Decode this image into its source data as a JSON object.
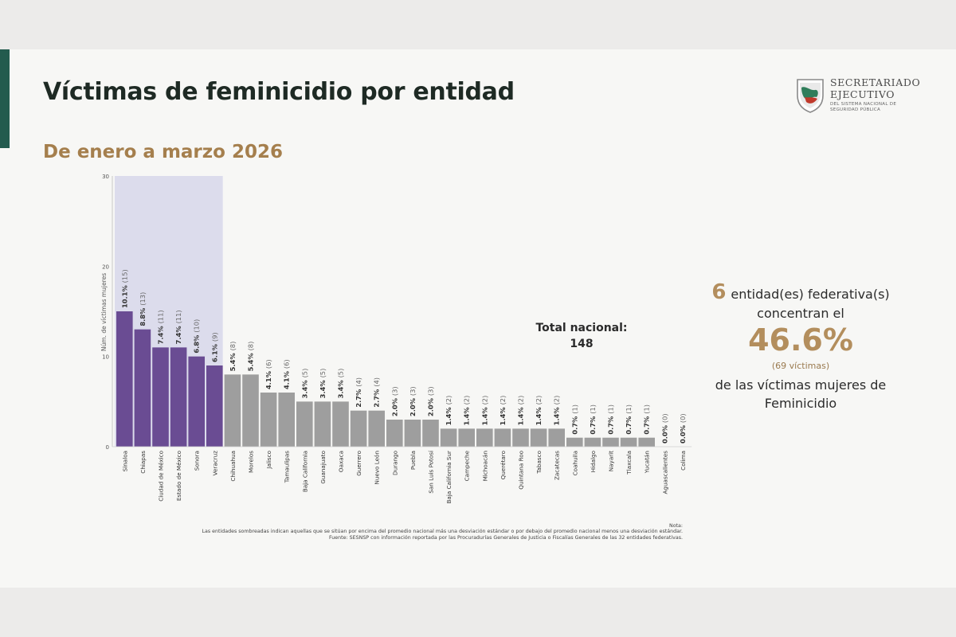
{
  "title": "Víctimas de feminicidio por entidad",
  "subtitle": "De enero a marzo 2026",
  "logo": {
    "line1": "SECRETARIADO",
    "line2": "EJECUTIVO",
    "line3": "DEL SISTEMA NACIONAL DE SEGURIDAD PÚBLICA"
  },
  "total": {
    "label": "Total nacional:",
    "value": "148"
  },
  "summary": {
    "count": "6",
    "line1": "entidad(es)  federativa(s)",
    "line2": "concentran el",
    "percent": "46.6%",
    "victims": "(69  víctimas)",
    "line3": "de las  víctimas  mujeres de",
    "line4": "Feminicidio"
  },
  "notes": {
    "label": "Nota:",
    "line1": "Las entidades sombreadas indican aquellas que se sitúan por encima del promedio nacional más una desviación estándar o por debajo del promedio nacional menos una desviación estándar.",
    "line2": "Fuente: SESNSP con información reportada por las Procuradurías Generales de Justicia o Fiscalías Generales de las 32 entidades federativas."
  },
  "colors": {
    "highlight_bar": "#6a4c93",
    "regular_bar": "#9e9e9e",
    "highlight_band": "#dcdcec",
    "accent": "#235b4e",
    "gold": "#b38e5d"
  },
  "chart_data": {
    "type": "bar",
    "ylabel": "Núm. de víctimas mujeres",
    "ylim": [
      0,
      30
    ],
    "yticks": [
      "0",
      "10",
      "20",
      "30"
    ],
    "categories": [
      "Sinaloa",
      "Chiapas",
      "Ciudad de México",
      "Estado de México",
      "Sonora",
      "Veracruz",
      "Chihuahua",
      "Morelos",
      "Jalisco",
      "Tamaulipas",
      "Baja California",
      "Guanajuato",
      "Oaxaca",
      "Guerrero",
      "Nuevo León",
      "Durango",
      "Puebla",
      "San Luis Potosí",
      "Baja California Sur",
      "Campeche",
      "Michoacán",
      "Querétaro",
      "Quintana Roo",
      "Tabasco",
      "Zacatecas",
      "Coahuila",
      "Hidalgo",
      "Nayarit",
      "Tlaxcala",
      "Yucatán",
      "Aguascalientes",
      "Colima"
    ],
    "values": [
      15,
      13,
      11,
      11,
      10,
      9,
      8,
      8,
      6,
      6,
      5,
      5,
      5,
      4,
      4,
      3,
      3,
      3,
      2,
      2,
      2,
      2,
      2,
      2,
      2,
      1,
      1,
      1,
      1,
      1,
      0,
      0
    ],
    "percents": [
      "10.1%",
      "8.8%",
      "7.4%",
      "7.4%",
      "6.8%",
      "6.1%",
      "5.4%",
      "5.4%",
      "4.1%",
      "4.1%",
      "3.4%",
      "3.4%",
      "3.4%",
      "2.7%",
      "2.7%",
      "2.0%",
      "2.0%",
      "2.0%",
      "1.4%",
      "1.4%",
      "1.4%",
      "1.4%",
      "1.4%",
      "1.4%",
      "1.4%",
      "0.7%",
      "0.7%",
      "0.7%",
      "0.7%",
      "0.7%",
      "0.0%",
      "0.0%"
    ],
    "counts": [
      "(15)",
      "(13)",
      "(11)",
      "(11)",
      "(10)",
      "(9)",
      "(8)",
      "(8)",
      "(6)",
      "(6)",
      "(5)",
      "(5)",
      "(5)",
      "(4)",
      "(4)",
      "(3)",
      "(3)",
      "(3)",
      "(2)",
      "(2)",
      "(2)",
      "(2)",
      "(2)",
      "(2)",
      "(2)",
      "(1)",
      "(1)",
      "(1)",
      "(1)",
      "(1)",
      "(0)",
      "(0)"
    ],
    "highlighted": [
      "Sinaloa",
      "Chiapas",
      "Ciudad de México",
      "Estado de México",
      "Sonora",
      "Veracruz"
    ]
  }
}
